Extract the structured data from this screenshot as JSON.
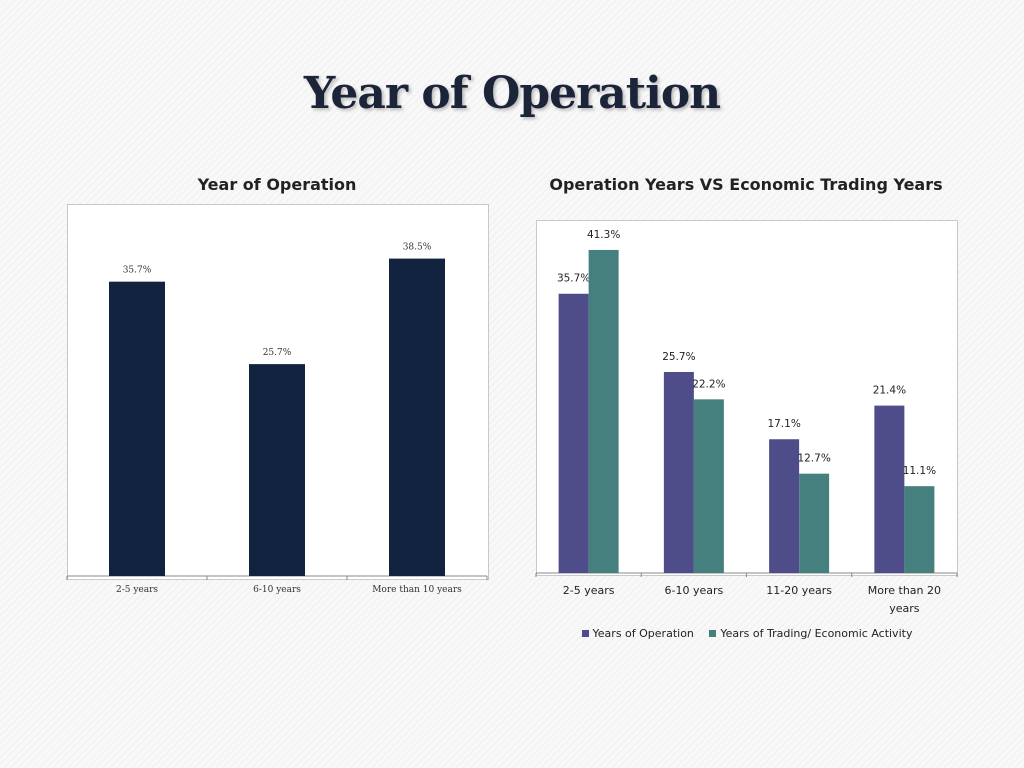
{
  "slide": {
    "title": "Year of Operation"
  },
  "chart_data": [
    {
      "type": "bar",
      "title": "Year of Operation",
      "categories": [
        "2-5 years",
        "6-10 years",
        "More than 10 years"
      ],
      "series": [
        {
          "values": [
            35.7,
            25.7,
            38.5
          ],
          "labels": [
            "35.7%",
            "25.7%",
            "38.5%"
          ],
          "color": "#12233f"
        }
      ],
      "ylim": [
        0,
        45
      ],
      "grid": false,
      "legend": "none"
    },
    {
      "type": "bar",
      "title": "Operation Years VS Economic Trading Years",
      "categories": [
        "2-5 years",
        "6-10 years",
        "11-20 years",
        "More than 20 years"
      ],
      "series": [
        {
          "name": "Years of Operation",
          "values": [
            35.7,
            25.7,
            17.1,
            21.4
          ],
          "labels": [
            "35.7%",
            "25.7%",
            "17.1%",
            "21.4%"
          ],
          "color": "#4e4d8a"
        },
        {
          "name": "Years of Trading/ Economic Activity",
          "values": [
            41.3,
            22.2,
            12.7,
            11.1
          ],
          "labels": [
            "41.3%",
            "22.2%",
            "12.7%",
            "11.1%"
          ],
          "color": "#45807f"
        }
      ],
      "ylim": [
        0,
        45
      ],
      "grid": false,
      "legend": "bottom"
    }
  ]
}
